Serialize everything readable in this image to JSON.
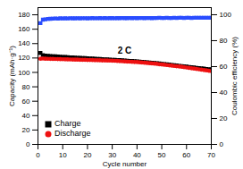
{
  "chart_data": {
    "type": "scatter",
    "x_label": "Cycle number",
    "y_label": "Capacity (mAh·g⁻¹)",
    "y2_label": "Coulombic efficiency (%)",
    "annotations": [
      "2 C"
    ],
    "xlim": [
      0,
      70
    ],
    "xticks": [
      0,
      10,
      20,
      30,
      40,
      50,
      60,
      70
    ],
    "ylim": [
      0,
      190
    ],
    "yticks": [
      0,
      20,
      40,
      60,
      80,
      100,
      120,
      140,
      160,
      180
    ],
    "y2lim": [
      0,
      105.5
    ],
    "y2ticks": [
      0,
      20,
      40,
      60,
      80,
      100
    ],
    "legend": "lower left",
    "x": [
      1,
      2,
      3,
      4,
      5,
      6,
      7,
      8,
      9,
      10,
      11,
      12,
      13,
      14,
      15,
      16,
      17,
      18,
      19,
      20,
      21,
      22,
      23,
      24,
      25,
      26,
      27,
      28,
      29,
      30,
      31,
      32,
      33,
      34,
      35,
      36,
      37,
      38,
      39,
      40,
      41,
      42,
      43,
      44,
      45,
      46,
      47,
      48,
      49,
      50,
      51,
      52,
      53,
      54,
      55,
      56,
      57,
      58,
      59,
      60,
      61,
      62,
      63,
      64,
      65,
      66,
      67,
      68,
      69,
      70
    ],
    "series": [
      {
        "name": "Charge",
        "color": "#000000",
        "marker": "square",
        "values": [
          127,
          124,
          123.5,
          123,
          122.8,
          122.5,
          122.3,
          122,
          121.8,
          121.6,
          121.4,
          121.2,
          121,
          120.8,
          120.6,
          120.4,
          120.2,
          120,
          119.8,
          119.6,
          119.4,
          119.2,
          119,
          118.8,
          118.6,
          118.4,
          118.2,
          118,
          117.8,
          117.6,
          117.4,
          117.2,
          117,
          116.8,
          116.6,
          116.3,
          116,
          115.8,
          115.5,
          115.2,
          115,
          114.7,
          114.4,
          114.1,
          113.8,
          113.5,
          113.2,
          112.8,
          112.4,
          112,
          111.6,
          111.2,
          110.8,
          110.4,
          110,
          109.6,
          109.2,
          108.8,
          108.4,
          108,
          107.6,
          107.2,
          106.8,
          106.4,
          106,
          105.6,
          105.2,
          104.8,
          104.4,
          104
        ]
      },
      {
        "name": "Discharge",
        "color": "#ee1111",
        "marker": "circle",
        "values": [
          119,
          119.2,
          119,
          118.9,
          118.8,
          118.7,
          118.6,
          118.5,
          118.4,
          118.3,
          118.2,
          118.1,
          118,
          117.9,
          117.8,
          117.7,
          117.6,
          117.5,
          117.4,
          117.3,
          117.2,
          117.1,
          117,
          116.9,
          116.8,
          116.7,
          116.6,
          116.5,
          116.4,
          116.3,
          116.1,
          115.9,
          115.7,
          115.5,
          115.3,
          115.1,
          114.9,
          114.7,
          114.5,
          114.3,
          114,
          113.7,
          113.4,
          113.1,
          112.8,
          112.5,
          112.2,
          111.8,
          111.4,
          111,
          110.6,
          110.2,
          109.8,
          109.4,
          109,
          108.6,
          108.2,
          107.8,
          107.3,
          106.8,
          106.3,
          105.8,
          105.3,
          104.8,
          104.3,
          103.8,
          103.3,
          102.8,
          102.3,
          101.8
        ]
      },
      {
        "name": "Coulombic efficiency",
        "color": "#2a4dff",
        "marker": "square",
        "axis": "y2",
        "values": [
          93.5,
          96.2,
          96.5,
          96.8,
          96.9,
          97,
          97.1,
          97,
          97.2,
          97.1,
          97.2,
          97.1,
          97.3,
          97.2,
          97.2,
          97.3,
          97.2,
          97.3,
          97.3,
          97.2,
          97.3,
          97.4,
          97.3,
          97.3,
          97.4,
          97.3,
          97.4,
          97.3,
          97.4,
          97.4,
          97.3,
          97.4,
          97.4,
          97.5,
          97.4,
          97.4,
          97.5,
          97.4,
          97.5,
          97.4,
          97.5,
          97.5,
          97.4,
          97.5,
          97.5,
          97.4,
          97.5,
          97.5,
          97.6,
          97.5,
          97.5,
          97.6,
          97.5,
          97.5,
          97.6,
          97.5,
          97.6,
          97.6,
          97.5,
          97.6,
          97.6,
          97.5,
          97.6,
          97.6,
          97.7,
          97.6,
          97.6,
          97.7,
          97.6,
          97.6
        ]
      }
    ]
  }
}
